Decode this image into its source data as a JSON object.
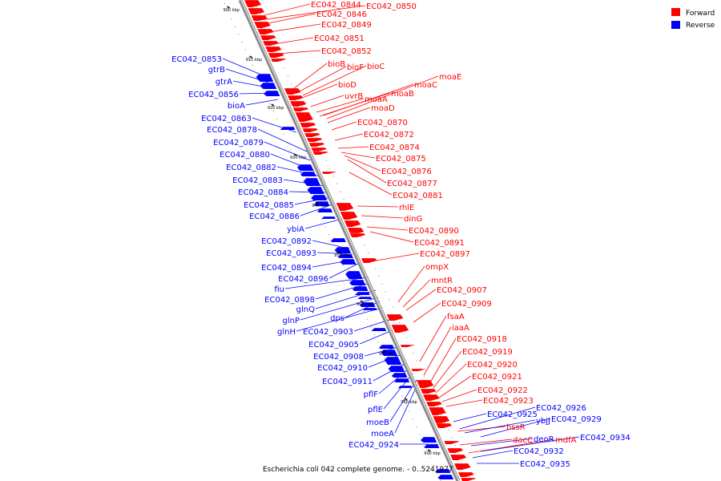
{
  "caption": "Escherichia coli 042 complete genome. - 0..5241977",
  "legend": [
    {
      "label": "Forward",
      "color": "#ff0000"
    },
    {
      "label": "Reverse",
      "color": "#0000ff"
    }
  ],
  "colors": {
    "forward": "#ff0000",
    "reverse": "#0000ff",
    "backbone": "#808080"
  },
  "ticks": [
    "900 kbp",
    "910 kbp",
    "920 kbp",
    "930 kbp",
    "940 kbp",
    "950 kbp",
    "960 kbp",
    "970 kbp",
    "980 kbp",
    "990 kbp"
  ],
  "forward_labels": [
    "EC042_0844",
    "EC042_0850",
    "EC042_0846",
    "EC042_0849",
    "EC042_0851",
    "EC042_0852",
    "bioB",
    "bioF",
    "bioC",
    "moaE",
    "moaC",
    "bioD",
    "moaB",
    "uvrB",
    "moaA",
    "moaD",
    "EC042_0870",
    "EC042_0872",
    "EC042_0874",
    "EC042_0875",
    "EC042_0876",
    "EC042_0877",
    "EC042_0881",
    "rhlE",
    "dinG",
    "EC042_0890",
    "EC042_0891",
    "EC042_0897",
    "ompX",
    "mntR",
    "EC042_0907",
    "EC042_0909",
    "fsaA",
    "iaaA",
    "EC042_0918",
    "EC042_0919",
    "EC042_0920",
    "EC042_0921",
    "EC042_0922",
    "EC042_0923",
    "bssR",
    "dacC",
    "mdfA"
  ],
  "reverse_labels": [
    "EC042_0853",
    "gtrB",
    "gtrA",
    "EC042_0856",
    "bioA",
    "EC042_0863",
    "EC042_0878",
    "EC042_0879",
    "EC042_0880",
    "EC042_0882",
    "EC042_0883",
    "EC042_0884",
    "EC042_0885",
    "EC042_0886",
    "ybiA",
    "EC042_0892",
    "EC042_0893",
    "EC042_0894",
    "EC042_0896",
    "fiu",
    "EC042_0898",
    "glnQ",
    "glnP",
    "dps",
    "glnH",
    "EC042_0903",
    "EC042_0905",
    "EC042_0908",
    "EC042_0910",
    "EC042_0911",
    "pflF",
    "pflE",
    "moeB",
    "moeA",
    "EC042_0924",
    "EC042_0926",
    "EC042_0925",
    "ybjJ",
    "EC042_0929",
    "deoR",
    "EC042_0934",
    "EC042_0932",
    "EC042_0935"
  ]
}
